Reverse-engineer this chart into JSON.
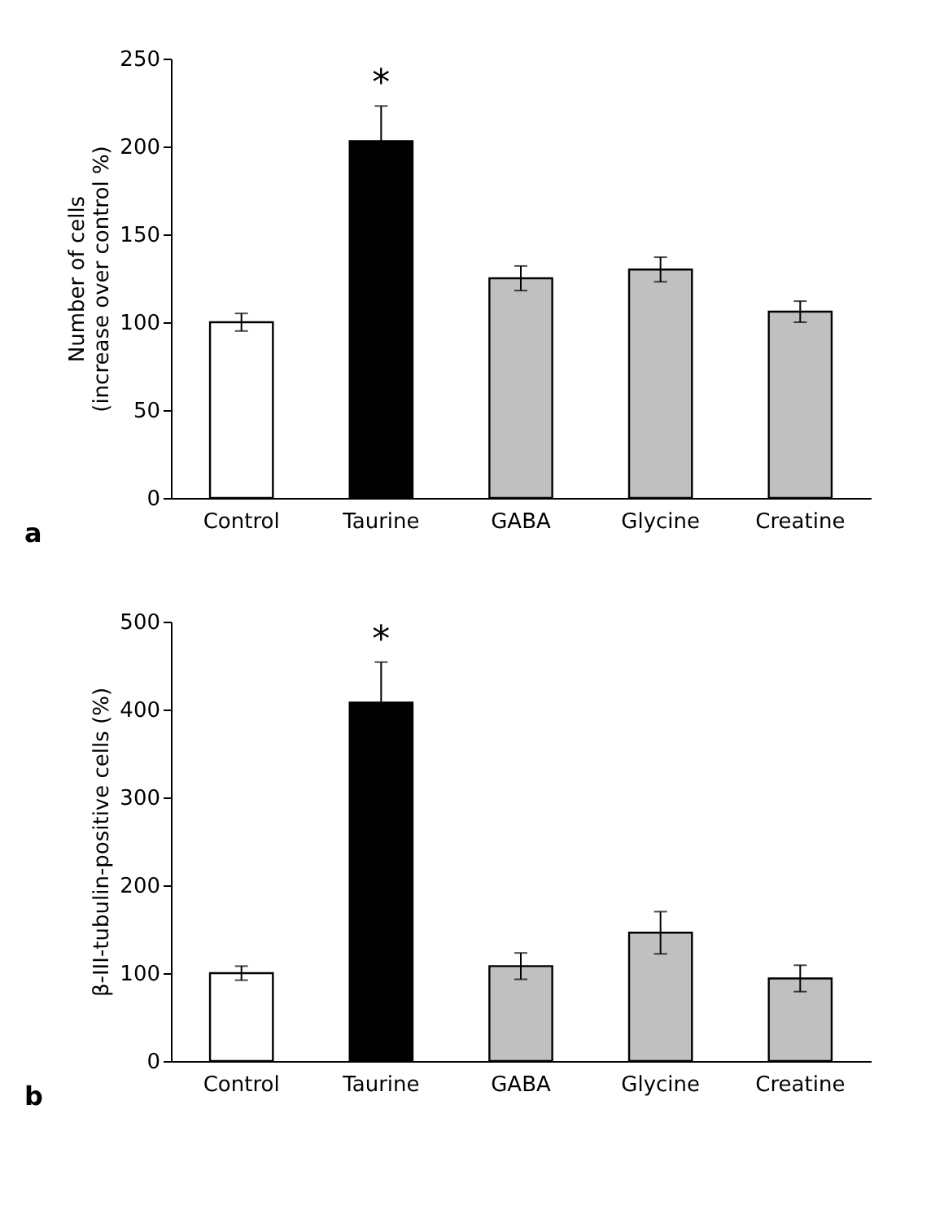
{
  "chart_data": [
    {
      "type": "bar",
      "categories": [
        "Control",
        "Taurine",
        "GABA",
        "Glycine",
        "Creatine"
      ],
      "ylabel": "Number of cells\n(increase over control %)",
      "values": [
        100,
        203,
        125,
        130,
        106
      ],
      "errors": [
        5,
        20,
        7,
        7,
        6
      ],
      "colors": [
        "#ffffff",
        "#000000",
        "#c0c0c0",
        "#c0c0c0",
        "#c0c0c0"
      ],
      "ylim": [
        0,
        250
      ],
      "yticks": [
        0,
        50,
        100,
        150,
        200,
        250
      ],
      "grid": false,
      "annotations": [
        "*",
        "a"
      ]
    },
    {
      "type": "bar",
      "categories": [
        "Control",
        "Taurine",
        "GABA",
        "Glycine",
        "Creatine"
      ],
      "ylabel": "β-III-tubulin-positive cells (%)",
      "values": [
        100,
        408,
        108,
        146,
        94
      ],
      "errors": [
        8,
        46,
        15,
        24,
        15
      ],
      "colors": [
        "#ffffff",
        "#000000",
        "#c0c0c0",
        "#c0c0c0",
        "#c0c0c0"
      ],
      "ylim": [
        0,
        500
      ],
      "yticks": [
        0,
        100,
        200,
        300,
        400,
        500
      ],
      "grid": false,
      "annotations": [
        "*",
        "b"
      ]
    }
  ]
}
